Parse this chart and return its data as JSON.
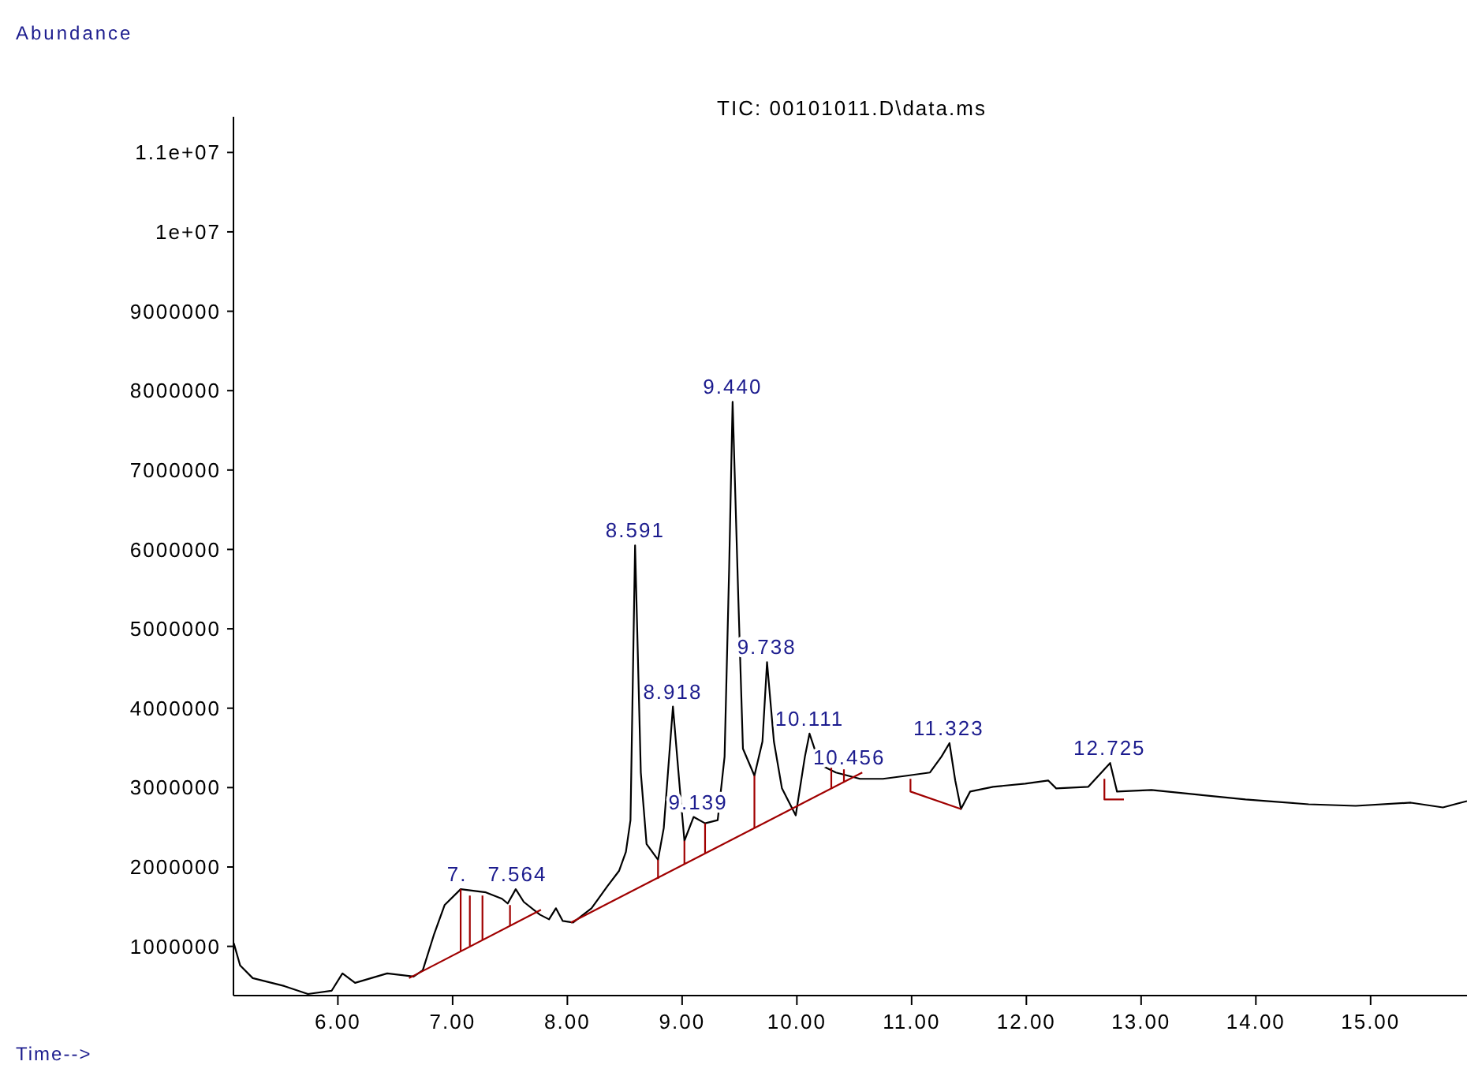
{
  "chart_data": {
    "type": "line",
    "title": "TIC: 00101011.D\\data.ms",
    "xlabel": "Time-->",
    "ylabel": "Abundance",
    "xlim": [
      5.09,
      15.84
    ],
    "ylim": [
      380000,
      11450000
    ],
    "xticks": [
      {
        "value": 6,
        "label": "6.00"
      },
      {
        "value": 7,
        "label": "7.00"
      },
      {
        "value": 8,
        "label": "8.00"
      },
      {
        "value": 9,
        "label": "9.00"
      },
      {
        "value": 10,
        "label": "10.00"
      },
      {
        "value": 11,
        "label": "11.00"
      },
      {
        "value": 12,
        "label": "12.00"
      },
      {
        "value": 13,
        "label": "13.00"
      },
      {
        "value": 14,
        "label": "14.00"
      },
      {
        "value": 15,
        "label": "15.00"
      }
    ],
    "yticks": [
      1000000,
      2000000,
      3000000,
      4000000,
      5000000,
      6000000,
      7000000,
      8000000,
      9000000,
      {
        "value": 10000000,
        "label": "1e+07"
      },
      {
        "value": 11000000,
        "label": "1.1e+07"
      }
    ],
    "grid": false,
    "marker": "none",
    "line_style": "solid",
    "series": [
      {
        "color": "#000000",
        "x": [
          5.093,
          5.148,
          5.258,
          5.533,
          5.739,
          5.945,
          6.04,
          6.15,
          6.43,
          6.66,
          6.74,
          6.84,
          6.93,
          7.07,
          7.29,
          7.43,
          7.48,
          7.55,
          7.62,
          7.76,
          7.84,
          7.9,
          7.96,
          8.05,
          8.21,
          8.35,
          8.45,
          8.51,
          8.55,
          8.59,
          8.64,
          8.69,
          8.79,
          8.84,
          8.92,
          8.98,
          9.02,
          9.1,
          9.2,
          9.31,
          9.37,
          9.41,
          9.44,
          9.49,
          9.53,
          9.63,
          9.7,
          9.74,
          9.8,
          9.87,
          9.99,
          10.07,
          10.11,
          10.2,
          10.34,
          10.55,
          10.75,
          10.96,
          11.16,
          11.26,
          11.33,
          11.38,
          11.43,
          11.51,
          11.71,
          11.99,
          12.19,
          12.26,
          12.54,
          12.73,
          12.79,
          13.09,
          13.5,
          13.91,
          14.46,
          14.87,
          15.35,
          15.63,
          15.84
        ],
        "values": [
          1040000,
          760000,
          600000,
          500000,
          400000,
          440000,
          660000,
          540000,
          660000,
          620000,
          700000,
          1160000,
          1520000,
          1720000,
          1680000,
          1600000,
          1540000,
          1720000,
          1560000,
          1400000,
          1340000,
          1480000,
          1320000,
          1300000,
          1480000,
          1760000,
          1950000,
          2190000,
          2590000,
          6050000,
          3190000,
          2290000,
          2090000,
          2490000,
          4020000,
          2990000,
          2330000,
          2630000,
          2550000,
          2590000,
          3390000,
          5770000,
          7860000,
          5370000,
          3490000,
          3150000,
          3580000,
          4580000,
          3580000,
          2990000,
          2650000,
          3390000,
          3680000,
          3290000,
          3190000,
          3110000,
          3110000,
          3150000,
          3190000,
          3390000,
          3560000,
          3090000,
          2730000,
          2950000,
          3010000,
          3050000,
          3090000,
          2990000,
          3010000,
          3310000,
          2950000,
          2970000,
          2910000,
          2850000,
          2790000,
          2770000,
          2810000,
          2750000,
          2830000
        ]
      },
      {
        "color": "#a00000",
        "x": [
          6.62,
          7.77
        ],
        "values": [
          600000,
          1460000
        ]
      },
      {
        "color": "#a00000",
        "x": [
          7.07,
          7.07
        ],
        "values": [
          1720000,
          940000
        ]
      },
      {
        "color": "#a00000",
        "x": [
          7.15,
          7.15
        ],
        "values": [
          1640000,
          1000000
        ]
      },
      {
        "color": "#a00000",
        "x": [
          7.26,
          7.26
        ],
        "values": [
          1640000,
          1080000
        ]
      },
      {
        "color": "#a00000",
        "x": [
          7.5,
          7.5
        ],
        "values": [
          1520000,
          1260000
        ]
      },
      {
        "color": "#a00000",
        "x": [
          8.03,
          10.57
        ],
        "values": [
          1300000,
          3190000
        ]
      },
      {
        "color": "#a00000",
        "x": [
          8.79,
          8.79
        ],
        "values": [
          2090000,
          1850000
        ]
      },
      {
        "color": "#a00000",
        "x": [
          9.02,
          9.02
        ],
        "values": [
          2330000,
          2030000
        ]
      },
      {
        "color": "#a00000",
        "x": [
          9.2,
          9.2
        ],
        "values": [
          2550000,
          2170000
        ]
      },
      {
        "color": "#a00000",
        "x": [
          9.63,
          9.63
        ],
        "values": [
          3150000,
          2490000
        ]
      },
      {
        "color": "#a00000",
        "x": [
          10.3,
          10.3
        ],
        "values": [
          3290000,
          2990000
        ]
      },
      {
        "color": "#a00000",
        "x": [
          10.41,
          10.41
        ],
        "values": [
          3230000,
          3070000
        ]
      },
      {
        "color": "#a00000",
        "x": [
          10.99,
          10.99,
          11.43
        ],
        "values": [
          3110000,
          2950000,
          2730000
        ]
      },
      {
        "color": "#a00000",
        "x": [
          12.68,
          12.68,
          12.85
        ],
        "values": [
          3110000,
          2850000,
          2850000
        ]
      }
    ],
    "annotations": [
      {
        "text": "7.",
        "x": 7.04,
        "y": 1720000
      },
      {
        "text": "7.564",
        "x": 7.564,
        "y": 1720000
      },
      {
        "text": "8.591",
        "x": 8.591,
        "y": 6050000
      },
      {
        "text": "8.918",
        "x": 8.918,
        "y": 4020000
      },
      {
        "text": "9.139",
        "x": 9.139,
        "y": 2630000
      },
      {
        "text": "9.440",
        "x": 9.44,
        "y": 7860000
      },
      {
        "text": "9.738",
        "x": 9.738,
        "y": 4580000
      },
      {
        "text": "10.111",
        "x": 10.111,
        "y": 3680000
      },
      {
        "text": "10.456",
        "x": 10.456,
        "y": 3190000
      },
      {
        "text": "11.323",
        "x": 11.323,
        "y": 3560000
      },
      {
        "text": "12.725",
        "x": 12.725,
        "y": 3310000
      }
    ]
  }
}
